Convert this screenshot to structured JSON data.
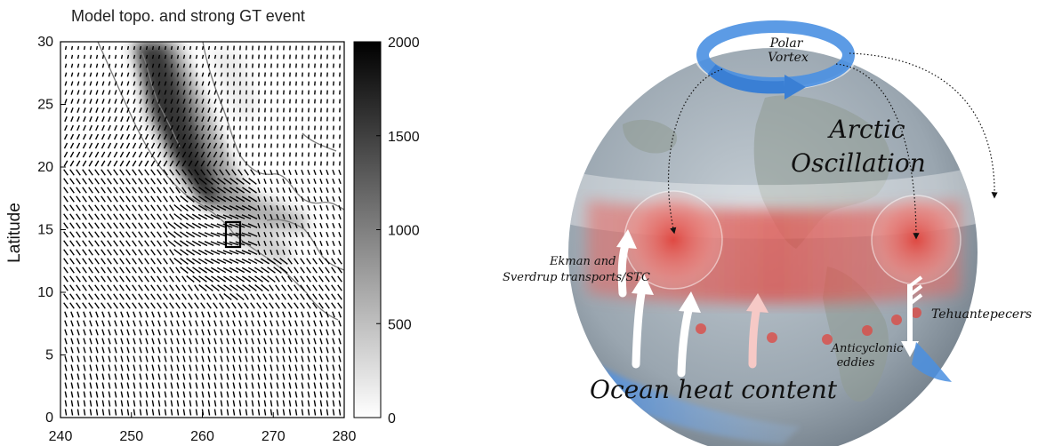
{
  "left_panel": {
    "title": "Model topo. and strong GT event",
    "ylabel": "Latitude",
    "x_ticks": [
      "240",
      "250",
      "260",
      "270",
      "280"
    ],
    "y_ticks": [
      "0",
      "5",
      "10",
      "15",
      "20",
      "25",
      "30"
    ],
    "x_range": [
      240,
      280
    ],
    "y_range": [
      0,
      30
    ],
    "colorbar": {
      "ticks": [
        "0",
        "500",
        "1000",
        "1500",
        "2000"
      ],
      "range": [
        0,
        2000
      ],
      "colors": [
        "#ffffff",
        "#000000"
      ]
    }
  },
  "right_panel": {
    "labels": {
      "polar_vortex_1": "Polar",
      "polar_vortex_2": "Vortex",
      "arctic": "Arctic",
      "oscillation": "Oscillation",
      "ekman_1": "Ekman and",
      "ekman_2": "Sverdrup transports/STC",
      "tehuantepecers": "Tehuantepecers",
      "anticyclonic_1": "Anticyclonic",
      "anticyclonic_2": "eddies",
      "ocean_heat": "Ocean heat content"
    },
    "colors": {
      "globe": "#9aa6b0",
      "vortex": "#4a90e2",
      "warm": "#e0463f",
      "ocean_band": "#4a8fe0"
    }
  }
}
